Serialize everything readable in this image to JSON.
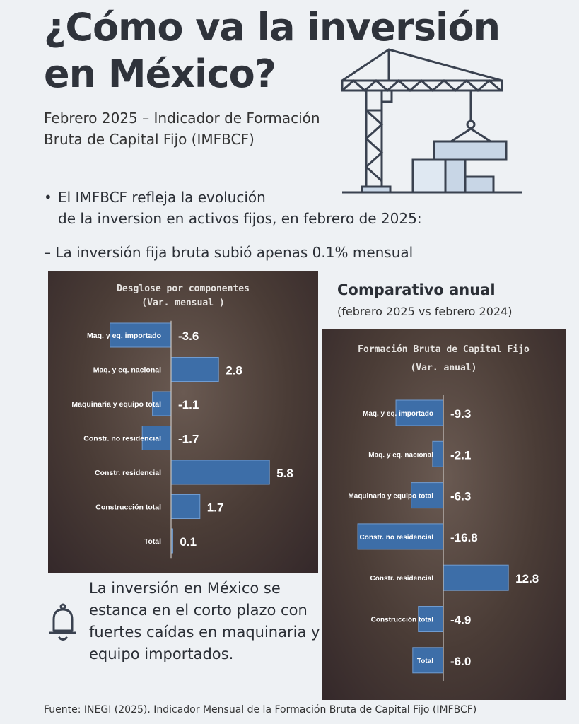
{
  "title": "¿Cómo va la inversión en México?",
  "subtitle": "Febrero 2025 – Indicador de Formación Bruta de Capital Fijo (IMFBCF)",
  "bullet": {
    "mark": "•",
    "line1": "El IMFBCF refleja la evolución",
    "line2": "de la inversion en activos fijos, en febrero de 2025:"
  },
  "dash_line": "– La inversión fija bruta subió apenas 0.1% mensual",
  "comparativo": {
    "title": "Comparativo anual",
    "subtitle": "(febrero 2025 vs febrero 2024)"
  },
  "note": "La inversión en México se estanca en el corto plazo con fuertes caídas en maquinaria  y equipo importados.",
  "source": "Fuente: INEGI (2025). Indicador Mensual de la Formación Bruta de Capital Fijo (IMFBCF)",
  "icons": [
    "crane-icon",
    "bell-icon"
  ],
  "colors": {
    "bar": "#3d6ea8",
    "panel": "#4a3c36",
    "label": "#ffffff"
  },
  "chart_data": [
    {
      "type": "bar",
      "orientation": "horizontal",
      "title": "Desglose por componentes",
      "subtitle": "(Var. mensual )",
      "categories": [
        "Maq. y eq. importado",
        "Maq. y eq. nacional",
        "Maquinaria y equipo total",
        "Constr. no residencial",
        "Constr. residencial",
        "Construcción total",
        "Total"
      ],
      "values": [
        -3.6,
        2.8,
        -1.1,
        -1.7,
        5.8,
        1.7,
        0.1
      ],
      "value_labels": [
        "-3.6",
        "2.8",
        "-1.1",
        "-1.7",
        "5.8",
        "1.7",
        "0.1"
      ],
      "xlim": [
        -3.6,
        8.0
      ],
      "grid": false
    },
    {
      "type": "bar",
      "orientation": "horizontal",
      "title": "Formación  Bruta de Capital Fijo",
      "subtitle": "(Var. anual)",
      "categories": [
        "Maq. y eq. importado",
        "Maq. y eq. nacional",
        "Maquinaria y equipo total",
        "Constr. no residencial",
        "Constr. residencial",
        "Construcción total",
        "Total"
      ],
      "values": [
        -9.3,
        -2.1,
        -6.3,
        -16.8,
        12.8,
        -4.9,
        -6.0
      ],
      "value_labels": [
        "-9.3",
        "-2.1",
        "-6.3",
        "-16.8",
        "12.8",
        "-4.9",
        "-6.0"
      ],
      "xlim": [
        -16.8,
        13.5
      ],
      "grid": false
    }
  ]
}
